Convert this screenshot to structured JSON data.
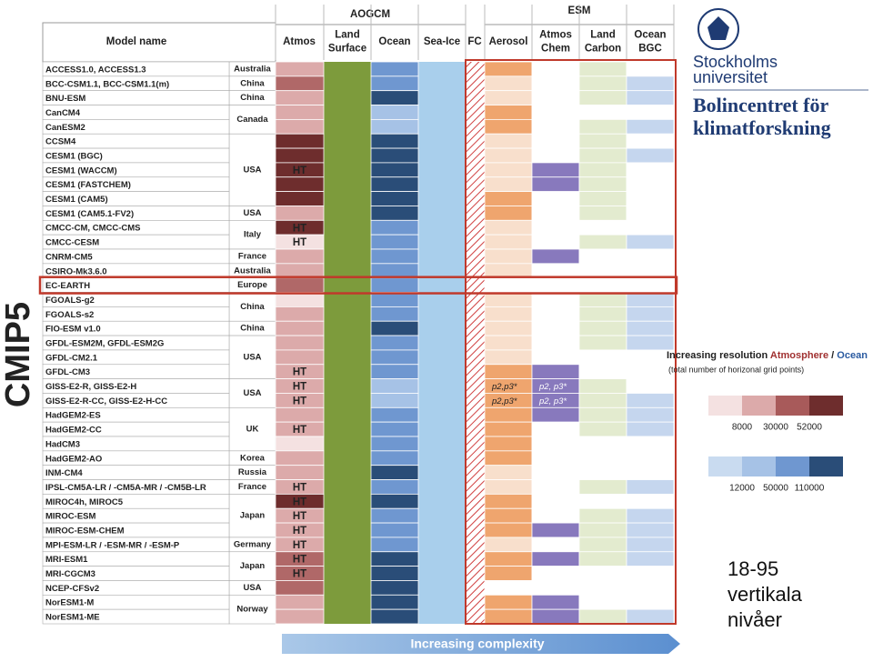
{
  "header": {
    "aogcm": "AOGCM",
    "esm": "ESM",
    "model_name": "Model name",
    "fc": "FC",
    "columns": [
      [
        "Atmos"
      ],
      [
        "Land",
        "Surface"
      ],
      [
        "Ocean"
      ],
      [
        "Sea-Ice"
      ],
      [
        "Aerosol"
      ],
      [
        "Atmos",
        "Chem"
      ],
      [
        "Land",
        "Carbon"
      ],
      [
        "Ocean",
        "BGC"
      ]
    ]
  },
  "cmip": "CMIP5",
  "complexity": "Increasing complexity",
  "colors": {
    "land": "#7d9b3c",
    "seaice": "#a9cfec",
    "fc": "#d04040",
    "border": "#c0392b"
  },
  "groups": [
    {
      "country": "Australia",
      "models": [
        {
          "name": "ACCESS1.0, ACCESS1.3",
          "cells": [
            "#dcaaaa",
            "#6f97d0",
            "#efa56e",
            "#ffffff",
            "#e3ebcf",
            "#ffffff"
          ]
        }
      ]
    },
    {
      "country": "China",
      "models": [
        {
          "name": "BCC-CSM1.1, BCC-CSM1.1(m)",
          "cells": [
            "#b06868",
            "#6f97d0",
            "#f8dfcc",
            "#ffffff",
            "#e3ebcf",
            "#c5d6ee"
          ]
        }
      ]
    },
    {
      "country": "China",
      "models": [
        {
          "name": "BNU-ESM",
          "cells": [
            "#dcaaaa",
            "#2a4d78",
            "#f8dfcc",
            "#ffffff",
            "#e3ebcf",
            "#c5d6ee"
          ]
        }
      ]
    },
    {
      "country": "Canada",
      "models": [
        {
          "name": "CanCM4",
          "cells": [
            "#dcaaaa",
            "#a6c2e6",
            "#efa56e",
            "#ffffff",
            "#ffffff",
            "#ffffff"
          ]
        },
        {
          "name": "CanESM2",
          "cells": [
            "#dcaaaa",
            "#a6c2e6",
            "#efa56e",
            "#ffffff",
            "#e3ebcf",
            "#c5d6ee"
          ]
        }
      ]
    },
    {
      "country": "USA",
      "models": [
        {
          "name": "CCSM4",
          "cells": [
            "#6e2d2d",
            "#2a4d78",
            "#f8dfcc",
            "#ffffff",
            "#e3ebcf",
            "#ffffff"
          ]
        },
        {
          "name": "CESM1 (BGC)",
          "cells": [
            "#6e2d2d",
            "#2a4d78",
            "#f8dfcc",
            "#ffffff",
            "#e3ebcf",
            "#c5d6ee"
          ]
        },
        {
          "name": "CESM1 (WACCM)",
          "atmos_text": "HT",
          "cells": [
            "#6e2d2d",
            "#2a4d78",
            "#f8dfcc",
            "#8879bd",
            "#e3ebcf",
            "#ffffff"
          ]
        },
        {
          "name": "CESM1 (FASTCHEM)",
          "cells": [
            "#6e2d2d",
            "#2a4d78",
            "#f8dfcc",
            "#8879bd",
            "#e3ebcf",
            "#ffffff"
          ]
        },
        {
          "name": "CESM1 (CAM5)",
          "cells": [
            "#6e2d2d",
            "#2a4d78",
            "#efa56e",
            "#ffffff",
            "#e3ebcf",
            "#ffffff"
          ]
        }
      ]
    },
    {
      "country": "USA",
      "models": [
        {
          "name": "CESM1 (CAM5.1-FV2)",
          "cells": [
            "#dcaaaa",
            "#2a4d78",
            "#efa56e",
            "#ffffff",
            "#e3ebcf",
            "#ffffff"
          ]
        }
      ]
    },
    {
      "country": "Italy",
      "models": [
        {
          "name": "CMCC-CM, CMCC-CMS",
          "atmos_text": "HT",
          "cells": [
            "#6e2d2d",
            "#6f97d0",
            "#f8dfcc",
            "#ffffff",
            "#ffffff",
            "#ffffff"
          ]
        },
        {
          "name": "CMCC-CESM",
          "atmos_text": "HT",
          "cells": [
            "#f4e1e1",
            "#6f97d0",
            "#f8dfcc",
            "#ffffff",
            "#e3ebcf",
            "#c5d6ee"
          ]
        }
      ]
    },
    {
      "country": "France",
      "models": [
        {
          "name": "CNRM-CM5",
          "cells": [
            "#dcaaaa",
            "#6f97d0",
            "#f8dfcc",
            "#8879bd",
            "#ffffff",
            "#ffffff"
          ]
        }
      ]
    },
    {
      "country": "Australia",
      "models": [
        {
          "name": "CSIRO-Mk3.6.0",
          "cells": [
            "#dcaaaa",
            "#6f97d0",
            "#f8dfcc",
            "#ffffff",
            "#ffffff",
            "#ffffff"
          ]
        }
      ]
    },
    {
      "country": "Europe",
      "models": [
        {
          "name": "EC-EARTH",
          "cells": [
            "#b06868",
            "#6f97d0",
            "#ffffff",
            "#ffffff",
            "#ffffff",
            "#ffffff"
          ]
        }
      ]
    },
    {
      "country": "China",
      "models": [
        {
          "name": "FGOALS-g2",
          "cells": [
            "#f4e1e1",
            "#6f97d0",
            "#f8dfcc",
            "#ffffff",
            "#e3ebcf",
            "#c5d6ee"
          ]
        },
        {
          "name": "FGOALS-s2",
          "cells": [
            "#dcaaaa",
            "#6f97d0",
            "#f8dfcc",
            "#ffffff",
            "#e3ebcf",
            "#c5d6ee"
          ]
        }
      ]
    },
    {
      "country": "China",
      "models": [
        {
          "name": "FIO-ESM v1.0",
          "cells": [
            "#dcaaaa",
            "#2a4d78",
            "#f8dfcc",
            "#ffffff",
            "#e3ebcf",
            "#c5d6ee"
          ]
        }
      ]
    },
    {
      "country": "USA",
      "models": [
        {
          "name": "GFDL-ESM2M, GFDL-ESM2G",
          "cells": [
            "#dcaaaa",
            "#6f97d0",
            "#f8dfcc",
            "#ffffff",
            "#e3ebcf",
            "#c5d6ee"
          ]
        },
        {
          "name": "GFDL-CM2.1",
          "cells": [
            "#dcaaaa",
            "#6f97d0",
            "#f8dfcc",
            "#ffffff",
            "#ffffff",
            "#ffffff"
          ]
        },
        {
          "name": "GFDL-CM3",
          "atmos_text": "HT",
          "cells": [
            "#dcaaaa",
            "#6f97d0",
            "#efa56e",
            "#8879bd",
            "#ffffff",
            "#ffffff"
          ]
        }
      ]
    },
    {
      "country": "USA",
      "models": [
        {
          "name": "GISS-E2-R, GISS-E2-H",
          "atmos_text": "HT",
          "aerosol_text": "p2,p3*",
          "chem_text": "p2, p3*",
          "cells": [
            "#dcaaaa",
            "#a6c2e6",
            "#efa56e",
            "#8879bd",
            "#e3ebcf",
            "#ffffff"
          ]
        },
        {
          "name": "GISS-E2-R-CC, GISS-E2-H-CC",
          "atmos_text": "HT",
          "aerosol_text": "p2,p3*",
          "chem_text": "p2, p3*",
          "cells": [
            "#dcaaaa",
            "#a6c2e6",
            "#efa56e",
            "#8879bd",
            "#e3ebcf",
            "#c5d6ee"
          ]
        }
      ]
    },
    {
      "country": "UK",
      "models": [
        {
          "name": "HadGEM2-ES",
          "cells": [
            "#dcaaaa",
            "#6f97d0",
            "#efa56e",
            "#8879bd",
            "#e3ebcf",
            "#c5d6ee"
          ]
        },
        {
          "name": "HadGEM2-CC",
          "atmos_text": "HT",
          "cells": [
            "#dcaaaa",
            "#6f97d0",
            "#efa56e",
            "#ffffff",
            "#e3ebcf",
            "#c5d6ee"
          ]
        },
        {
          "name": "HadCM3",
          "cells": [
            "#f4e1e1",
            "#6f97d0",
            "#efa56e",
            "#ffffff",
            "#ffffff",
            "#ffffff"
          ]
        }
      ]
    },
    {
      "country": "Korea",
      "models": [
        {
          "name": "HadGEM2-AO",
          "cells": [
            "#dcaaaa",
            "#6f97d0",
            "#efa56e",
            "#ffffff",
            "#ffffff",
            "#ffffff"
          ]
        }
      ]
    },
    {
      "country": "Russia",
      "models": [
        {
          "name": "INM-CM4",
          "cells": [
            "#dcaaaa",
            "#2a4d78",
            "#f8dfcc",
            "#ffffff",
            "#ffffff",
            "#ffffff"
          ]
        }
      ]
    },
    {
      "country": "France",
      "models": [
        {
          "name": "IPSL-CM5A-LR / -CM5A-MR / -CM5B-LR",
          "atmos_text": "HT",
          "cells": [
            "#dcaaaa",
            "#6f97d0",
            "#f8dfcc",
            "#ffffff",
            "#e3ebcf",
            "#c5d6ee"
          ]
        }
      ]
    },
    {
      "country": "Japan",
      "models": [
        {
          "name": "MIROC4h, MIROC5",
          "atmos_text": "HT",
          "cells": [
            "#6e2d2d",
            "#2a4d78",
            "#efa56e",
            "#ffffff",
            "#ffffff",
            "#ffffff"
          ]
        },
        {
          "name": "MIROC-ESM",
          "atmos_text": "HT",
          "cells": [
            "#dcaaaa",
            "#6f97d0",
            "#efa56e",
            "#ffffff",
            "#e3ebcf",
            "#c5d6ee"
          ]
        },
        {
          "name": "MIROC-ESM-CHEM",
          "atmos_text": "HT",
          "cells": [
            "#dcaaaa",
            "#6f97d0",
            "#efa56e",
            "#8879bd",
            "#e3ebcf",
            "#c5d6ee"
          ]
        }
      ]
    },
    {
      "country": "Germany",
      "models": [
        {
          "name": "MPI-ESM-LR / -ESM-MR / -ESM-P",
          "atmos_text": "HT",
          "cells": [
            "#dcaaaa",
            "#6f97d0",
            "#f8dfcc",
            "#ffffff",
            "#e3ebcf",
            "#c5d6ee"
          ]
        }
      ]
    },
    {
      "country": "Japan",
      "models": [
        {
          "name": "MRI-ESM1",
          "atmos_text": "HT",
          "cells": [
            "#b06868",
            "#2a4d78",
            "#efa56e",
            "#8879bd",
            "#e3ebcf",
            "#c5d6ee"
          ]
        },
        {
          "name": "MRI-CGCM3",
          "atmos_text": "HT",
          "cells": [
            "#b06868",
            "#2a4d78",
            "#efa56e",
            "#ffffff",
            "#ffffff",
            "#ffffff"
          ]
        }
      ]
    },
    {
      "country": "USA",
      "models": [
        {
          "name": "NCEP-CFSv2",
          "cells": [
            "#b06868",
            "#2a4d78",
            "#ffffff",
            "#ffffff",
            "#ffffff",
            "#ffffff"
          ]
        }
      ]
    },
    {
      "country": "Norway",
      "models": [
        {
          "name": "NorESM1-M",
          "cells": [
            "#dcaaaa",
            "#2a4d78",
            "#efa56e",
            "#8879bd",
            "#ffffff",
            "#ffffff"
          ]
        },
        {
          "name": "NorESM1-ME",
          "cells": [
            "#dcaaaa",
            "#2a4d78",
            "#efa56e",
            "#8879bd",
            "#e3ebcf",
            "#c5d6ee"
          ]
        }
      ]
    }
  ],
  "highlight": "EC-EARTH",
  "side": {
    "logo_line1": "Stockholms",
    "logo_line2": "universitet",
    "center_line1": "Bolincentret för",
    "center_line2": "klimatforskning",
    "legend_title": "Increasing resolution",
    "legend_atmos": "Atmosphere",
    "legend_sep": "/",
    "legend_ocean": "Ocean",
    "legend_note": "(total number of horizonal grid points)",
    "atmos_scale": {
      "colors": [
        "#f4e1e1",
        "#dcaaaa",
        "#a85a5a",
        "#6e2d2d"
      ],
      "labels": [
        8000,
        30000,
        52000
      ]
    },
    "ocean_scale": {
      "colors": [
        "#c9dbf0",
        "#a6c2e6",
        "#6f97d0",
        "#2a4d78"
      ],
      "labels": [
        12000,
        50000,
        110000
      ]
    },
    "levels": [
      "18-95",
      "vertikala",
      "nivåer"
    ]
  }
}
